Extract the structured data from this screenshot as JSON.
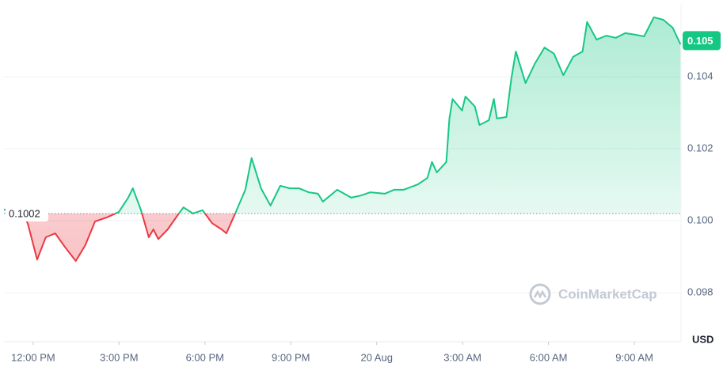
{
  "chart_data": {
    "type": "line",
    "x": [
      -1.02,
      -0.33,
      -0.17,
      0.14,
      0.44,
      0.77,
      1.11,
      1.49,
      1.82,
      2.16,
      2.57,
      2.99,
      3.32,
      3.48,
      3.76,
      4.04,
      4.2,
      4.37,
      4.7,
      5.09,
      5.25,
      5.58,
      5.92,
      6.25,
      6.58,
      6.75,
      7.08,
      7.41,
      7.63,
      7.96,
      8.29,
      8.63,
      8.96,
      9.29,
      9.62,
      9.95,
      10.12,
      10.62,
      11.11,
      11.45,
      11.78,
      12.28,
      12.61,
      12.94,
      13.44,
      13.77,
      13.93,
      14.1,
      14.43,
      14.54,
      14.65,
      14.98,
      15.1,
      15.43,
      15.59,
      15.92,
      16.09,
      16.2,
      16.53,
      16.7,
      16.86,
      17.2,
      17.53,
      17.86,
      18.19,
      18.52,
      18.86,
      19.19,
      19.35,
      19.68,
      20.02,
      20.35,
      20.68,
      21.01,
      21.34,
      21.68,
      22.01,
      22.34,
      22.61
    ],
    "series": [
      {
        "color": "#16c784",
        "negative_color": "#ea3943",
        "values": [
          0.10031,
          0.10024,
          0.09987,
          0.09892,
          0.09954,
          0.09965,
          0.09927,
          0.09888,
          0.09932,
          0.09998,
          0.10009,
          0.10024,
          0.10064,
          0.1009,
          0.10031,
          0.09954,
          0.09976,
          0.09949,
          0.09976,
          0.1002,
          0.10037,
          0.1002,
          0.10029,
          0.09993,
          0.09976,
          0.09965,
          0.10024,
          0.10086,
          0.10174,
          0.1009,
          0.10042,
          0.10097,
          0.1009,
          0.1009,
          0.10079,
          0.10075,
          0.10053,
          0.10086,
          0.10064,
          0.1007,
          0.10079,
          0.10075,
          0.10086,
          0.10086,
          0.10101,
          0.10119,
          0.10163,
          0.10134,
          0.10163,
          0.10284,
          0.10338,
          0.10306,
          0.10345,
          0.10317,
          0.10266,
          0.10279,
          0.10338,
          0.10284,
          0.10288,
          0.10393,
          0.1047,
          0.10382,
          0.10437,
          0.10481,
          0.10464,
          0.10404,
          0.10455,
          0.1047,
          0.10552,
          0.10503,
          0.10514,
          0.10508,
          0.10521,
          0.10517,
          0.10512,
          0.10565,
          0.10558,
          0.10536,
          0.1049
        ]
      }
    ],
    "baseline": 0.1002,
    "current_price": 0.105,
    "xlim": [
      -1.02,
      22.63
    ],
    "xticks": [
      {
        "value": 0,
        "label": "12:00 PM"
      },
      {
        "value": 3,
        "label": "3:00 PM"
      },
      {
        "value": 6,
        "label": "6:00 PM"
      },
      {
        "value": 9,
        "label": "9:00 PM"
      },
      {
        "value": 12,
        "label": "20 Aug"
      },
      {
        "value": 15,
        "label": "3:00 AM"
      },
      {
        "value": 18,
        "label": "6:00 AM"
      },
      {
        "value": 21,
        "label": "9:00 AM"
      }
    ],
    "ylim": [
      0.09664,
      0.10602
    ],
    "yticks": [
      0.098,
      {
        "value": 0.1,
        "label": "0.100"
      },
      0.102,
      0.104
    ],
    "grid": true,
    "unit": "USD",
    "watermark": "CoinMarketCap"
  }
}
